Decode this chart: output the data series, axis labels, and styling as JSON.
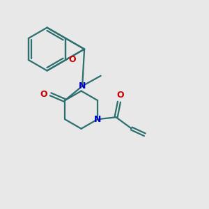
{
  "bg_color": "#e8e8e8",
  "bond_color": "#2d6e6e",
  "N_color": "#0000cc",
  "O_color": "#cc0000",
  "line_width": 1.6,
  "figsize": [
    3.0,
    3.0
  ],
  "dpi": 100,
  "xlim": [
    0,
    10
  ],
  "ylim": [
    0,
    10
  ]
}
